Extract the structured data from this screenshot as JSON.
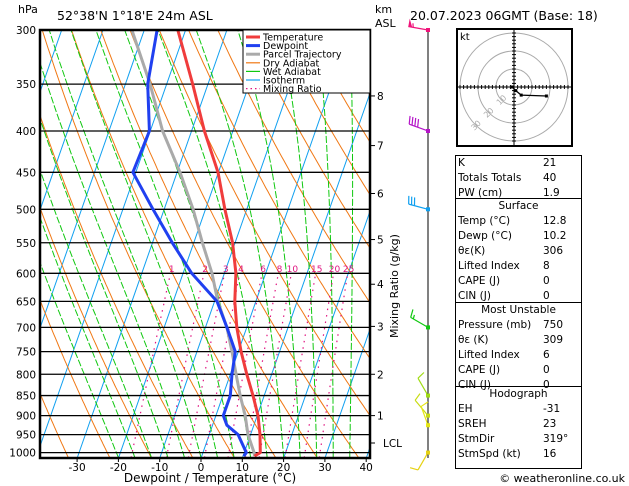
{
  "header": {
    "pressure_unit": "hPa",
    "location": "52°38'N  1°18'E  24m  ASL",
    "km_label": "km",
    "asl_label": "ASL",
    "datetime": "20.07.2023  06GMT  (Base: 18)"
  },
  "footer": {
    "copyright": "© weatheronline.co.uk"
  },
  "colors": {
    "temperature": "#f03c3c",
    "dewpoint": "#2040f0",
    "parcel": "#aaaaaa",
    "dry_adiabat": "#f07814",
    "wet_adiabat": "#10c810",
    "isotherm": "#10a0f0",
    "mixing_ratio": "#e01480"
  },
  "chart_data": {
    "type": "line",
    "title": "Skew-T log-P diagram",
    "xlabel": "Dewpoint / Temperature (°C)",
    "ylabel": "hPa",
    "y2label": "Mixing Ratio (g/kg)",
    "xlim": [
      -39,
      40
    ],
    "ylim": [
      1015,
      300
    ],
    "x_ticks": [
      "-30",
      "-20",
      "-10",
      "0",
      "10",
      "20",
      "30",
      "40"
    ],
    "x_tick_values": [
      -30,
      -20,
      -10,
      0,
      10,
      20,
      30,
      40
    ],
    "pressure_levels": [
      300,
      350,
      400,
      450,
      500,
      550,
      600,
      650,
      700,
      750,
      800,
      850,
      900,
      950,
      1000
    ],
    "pressure_labels": [
      "300",
      "350",
      "400",
      "450",
      "500",
      "550",
      "600",
      "650",
      "700",
      "750",
      "800",
      "850",
      "900",
      "950",
      "1000"
    ],
    "legend": [
      "Temperature",
      "Dewpoint",
      "Parcel Trajectory",
      "Dry Adiabat",
      "Wet Adiabat",
      "Isotherm",
      "Mixing Ratio"
    ],
    "legend_placement": "top-right",
    "series": [
      {
        "name": "Temperature",
        "p": [
          1010,
          1000,
          950,
          900,
          850,
          800,
          750,
          700,
          650,
          600,
          550,
          500,
          450,
          400,
          350,
          300
        ],
        "t": [
          12.8,
          13.9,
          12.3,
          10.2,
          7.3,
          4.0,
          0.7,
          -2.4,
          -5.1,
          -7.2,
          -10.6,
          -15.3,
          -20.1,
          -26.9,
          -33.7,
          -41.9
        ]
      },
      {
        "name": "Dewpoint",
        "p": [
          1010,
          1000,
          950,
          925,
          900,
          850,
          800,
          750,
          700,
          650,
          600,
          550,
          500,
          450,
          400,
          350,
          300
        ],
        "t": [
          10.2,
          10.5,
          7.0,
          3.5,
          1.8,
          1.8,
          0.4,
          -0.7,
          -4.8,
          -9.4,
          -17.9,
          -25.2,
          -32.7,
          -40.7,
          -40.2,
          -44.6,
          -46.9
        ]
      },
      {
        "name": "Parcel Trajectory",
        "p": [
          1010,
          1000,
          950,
          900,
          850,
          800,
          750,
          700,
          650,
          600,
          550,
          500,
          450,
          400,
          350,
          300
        ],
        "t": [
          12.8,
          12.4,
          9.4,
          7.1,
          4.2,
          1.4,
          -1.5,
          -4.8,
          -9.2,
          -13.0,
          -17.9,
          -23.0,
          -29.3,
          -37.0,
          -44.0,
          -53.0
        ]
      }
    ],
    "mixing_ratio_labels": [
      "1",
      "2",
      "3",
      "4",
      "6",
      "8",
      "10",
      "15",
      "20",
      "25"
    ],
    "mixing_ratio_values": [
      1,
      2,
      3,
      4,
      6,
      8,
      10,
      15,
      20,
      25
    ],
    "km_ticks": [
      {
        "label": "8",
        "p": 362
      },
      {
        "label": "7",
        "p": 417
      },
      {
        "label": "6",
        "p": 478
      },
      {
        "label": "5",
        "p": 545
      },
      {
        "label": "4",
        "p": 619
      },
      {
        "label": "3",
        "p": 698
      },
      {
        "label": "2",
        "p": 800
      },
      {
        "label": "1",
        "p": 900
      },
      {
        "label": "LCL",
        "p": 973
      }
    ],
    "winds": [
      {
        "p": 300,
        "dir": 280,
        "kt": 55,
        "color": "#f0147a"
      },
      {
        "p": 400,
        "dir": 290,
        "kt": 40,
        "color": "#b414c8"
      },
      {
        "p": 500,
        "dir": 285,
        "kt": 30,
        "color": "#10a0f0"
      },
      {
        "p": 700,
        "dir": 300,
        "kt": 15,
        "color": "#10c810"
      },
      {
        "p": 850,
        "dir": 330,
        "kt": 10,
        "color": "#a0dc14"
      },
      {
        "p": 900,
        "dir": 320,
        "kt": 10,
        "color": "#c8dc14"
      },
      {
        "p": 925,
        "dir": 340,
        "kt": 10,
        "color": "#e6e614"
      },
      {
        "p": 1000,
        "dir": 210,
        "kt": 10,
        "color": "#e6d214"
      }
    ]
  },
  "hodograph": {
    "unit": "kt",
    "ring_labels": [
      "10",
      "20",
      "30"
    ],
    "trace_u": [
      -1,
      1,
      4,
      18
    ],
    "trace_v": [
      0,
      -2,
      -4.5,
      -5
    ]
  },
  "indices": {
    "k_label": "K",
    "k": "21",
    "tt_label": "Totals Totals",
    "tt": "40",
    "pw_label": "PW (cm)",
    "pw": "1.9"
  },
  "surface": {
    "title": "Surface",
    "temp_label": "Temp (°C)",
    "temp": "12.8",
    "dewp_label": "Dewp (°C)",
    "dewp": "10.2",
    "thetae_label": "θε(K)",
    "thetae": "306",
    "li_label": "Lifted Index",
    "li": "8",
    "cape_label": "CAPE (J)",
    "cape": "0",
    "cin_label": "CIN (J)",
    "cin": "0"
  },
  "most_unstable": {
    "title": "Most Unstable",
    "pressure_label": "Pressure (mb)",
    "pressure": "750",
    "thetae_label": "θε (K)",
    "thetae": "309",
    "li_label": "Lifted Index",
    "li": "6",
    "cape_label": "CAPE (J)",
    "cape": "0",
    "cin_label": "CIN (J)",
    "cin": "0"
  },
  "hodo_stats": {
    "title": "Hodograph",
    "eh_label": "EH",
    "eh": "-31",
    "sreh_label": "SREH",
    "sreh": "23",
    "stmdir_label": "StmDir",
    "stmdir": "319°",
    "stmspd_label": "StmSpd (kt)",
    "stmspd": "16"
  }
}
